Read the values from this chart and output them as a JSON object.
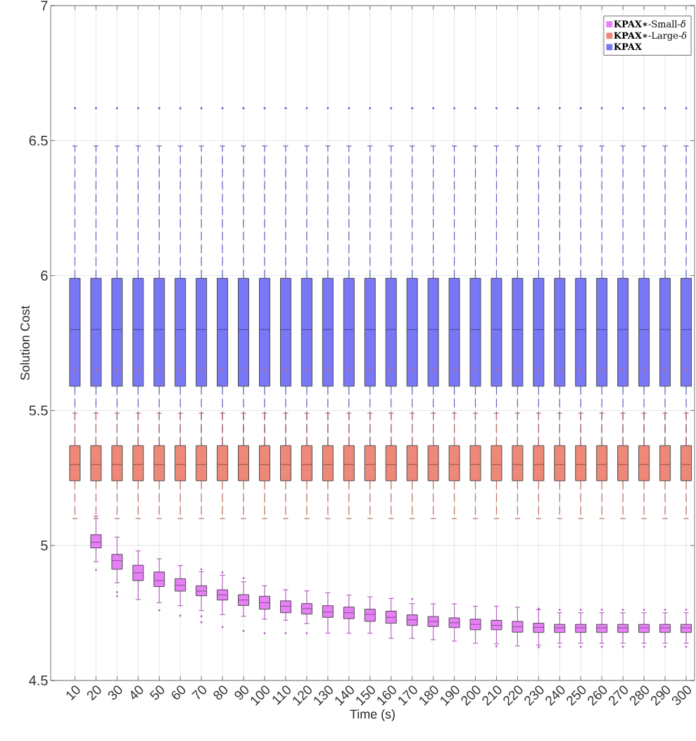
{
  "chart_data": {
    "type": "box",
    "xlabel": "Time (s)",
    "ylabel": "Solution Cost",
    "categories": [
      "10",
      "20",
      "30",
      "40",
      "50",
      "60",
      "70",
      "80",
      "90",
      "100",
      "110",
      "120",
      "130",
      "140",
      "150",
      "160",
      "170",
      "180",
      "190",
      "200",
      "210",
      "220",
      "230",
      "240",
      "250",
      "260",
      "270",
      "280",
      "290",
      "300"
    ],
    "ylim": [
      4.5,
      7
    ],
    "yticks": [
      4.5,
      5,
      5.5,
      6,
      6.5,
      7
    ],
    "grid": true,
    "legend": "top right",
    "series": [
      {
        "name": "**KPAX∗**-Small-*δ*",
        "color": "#e680f5",
        "line_style": "solid",
        "boxes": [
          null,
          {
            "low": 4.94,
            "q1": 4.991,
            "median": 5.012,
            "q3": 5.04,
            "high": 5.109,
            "outliers": [
              4.91
            ]
          },
          {
            "low": 4.862,
            "q1": 4.912,
            "median": 4.944,
            "q3": 4.967,
            "high": 5.031,
            "outliers": [
              4.827,
              4.812
            ]
          },
          {
            "low": 4.8,
            "q1": 4.87,
            "median": 4.899,
            "q3": 4.927,
            "high": 4.98
          },
          {
            "low": 4.788,
            "q1": 4.848,
            "median": 4.87,
            "q3": 4.902,
            "high": 4.951,
            "outliers": [
              4.76
            ]
          },
          {
            "low": 4.777,
            "q1": 4.831,
            "median": 4.853,
            "q3": 4.877,
            "high": 4.926,
            "outliers": [
              4.74
            ]
          },
          {
            "low": 4.759,
            "q1": 4.814,
            "median": 4.831,
            "q3": 4.851,
            "high": 4.903,
            "outliers": [
              4.912,
              4.738,
              4.716
            ]
          },
          {
            "low": 4.744,
            "q1": 4.798,
            "median": 4.817,
            "q3": 4.836,
            "high": 4.89,
            "outliers": [
              4.9,
              4.698
            ]
          },
          {
            "low": 4.738,
            "q1": 4.778,
            "median": 4.798,
            "q3": 4.818,
            "high": 4.866,
            "outliers": [
              4.879,
              4.684
            ]
          },
          {
            "low": 4.727,
            "q1": 4.764,
            "median": 4.788,
            "q3": 4.812,
            "high": 4.851,
            "outliers": [
              4.675
            ]
          },
          {
            "low": 4.723,
            "q1": 4.751,
            "median": 4.775,
            "q3": 4.795,
            "high": 4.836,
            "outliers": [
              4.675
            ]
          },
          {
            "low": 4.711,
            "q1": 4.746,
            "median": 4.766,
            "q3": 4.785,
            "high": 4.832,
            "outliers": [
              4.675
            ]
          },
          {
            "low": 4.675,
            "q1": 4.734,
            "median": 4.753,
            "q3": 4.777,
            "high": 4.825
          },
          {
            "low": 4.675,
            "q1": 4.729,
            "median": 4.751,
            "q3": 4.772,
            "high": 4.816
          },
          {
            "low": 4.675,
            "q1": 4.719,
            "median": 4.745,
            "q3": 4.764,
            "high": 4.81
          },
          {
            "low": 4.656,
            "q1": 4.712,
            "median": 4.734,
            "q3": 4.757,
            "high": 4.804
          },
          {
            "low": 4.656,
            "q1": 4.704,
            "median": 4.725,
            "q3": 4.743,
            "high": 4.785,
            "outliers": [
              4.802
            ]
          },
          {
            "low": 4.651,
            "q1": 4.7,
            "median": 4.719,
            "q3": 4.737,
            "high": 4.784
          },
          {
            "low": 4.646,
            "q1": 4.696,
            "median": 4.714,
            "q3": 4.732,
            "high": 4.784
          },
          {
            "low": 4.638,
            "q1": 4.688,
            "median": 4.708,
            "q3": 4.727,
            "high": 4.775
          },
          {
            "low": 4.636,
            "q1": 4.688,
            "median": 4.704,
            "q3": 4.723,
            "high": 4.775,
            "outliers": [
              4.627
            ]
          },
          {
            "low": 4.628,
            "q1": 4.679,
            "median": 4.699,
            "q3": 4.719,
            "high": 4.771
          },
          {
            "low": 4.631,
            "q1": 4.678,
            "median": 4.697,
            "q3": 4.712,
            "high": 4.762,
            "outliers": [
              4.766,
              4.623
            ]
          },
          {
            "low": 4.638,
            "q1": 4.678,
            "median": 4.695,
            "q3": 4.708,
            "high": 4.751,
            "outliers": [
              4.762,
              4.625
            ]
          },
          {
            "low": 4.638,
            "q1": 4.678,
            "median": 4.695,
            "q3": 4.708,
            "high": 4.751,
            "outliers": [
              4.762,
              4.625
            ]
          },
          {
            "low": 4.638,
            "q1": 4.678,
            "median": 4.695,
            "q3": 4.708,
            "high": 4.751,
            "outliers": [
              4.762,
              4.625
            ]
          },
          {
            "low": 4.638,
            "q1": 4.678,
            "median": 4.695,
            "q3": 4.708,
            "high": 4.751,
            "outliers": [
              4.762,
              4.625
            ]
          },
          {
            "low": 4.638,
            "q1": 4.678,
            "median": 4.695,
            "q3": 4.708,
            "high": 4.751,
            "outliers": [
              4.762,
              4.625
            ]
          },
          {
            "low": 4.638,
            "q1": 4.678,
            "median": 4.695,
            "q3": 4.708,
            "high": 4.751,
            "outliers": [
              4.762,
              4.625
            ]
          },
          {
            "low": 4.638,
            "q1": 4.678,
            "median": 4.695,
            "q3": 4.708,
            "high": 4.751,
            "outliers": [
              4.762,
              4.625
            ]
          }
        ]
      },
      {
        "name": "**KPAX∗**-Large-*δ*",
        "color": "#ee8878",
        "line_style": "dashed",
        "boxes": [
          {
            "low": 5.1,
            "q1": 5.24,
            "median": 5.3,
            "q3": 5.37,
            "high": 5.49,
            "outliers": [
              5.65
            ]
          },
          {
            "low": 5.1,
            "q1": 5.24,
            "median": 5.3,
            "q3": 5.37,
            "high": 5.49,
            "outliers": [
              5.65
            ]
          },
          {
            "low": 5.1,
            "q1": 5.24,
            "median": 5.3,
            "q3": 5.37,
            "high": 5.49,
            "outliers": [
              5.65
            ]
          },
          {
            "low": 5.1,
            "q1": 5.24,
            "median": 5.3,
            "q3": 5.37,
            "high": 5.49,
            "outliers": [
              5.65
            ]
          },
          {
            "low": 5.1,
            "q1": 5.24,
            "median": 5.3,
            "q3": 5.37,
            "high": 5.49,
            "outliers": [
              5.65
            ]
          },
          {
            "low": 5.1,
            "q1": 5.24,
            "median": 5.3,
            "q3": 5.37,
            "high": 5.49,
            "outliers": [
              5.65
            ]
          },
          {
            "low": 5.1,
            "q1": 5.24,
            "median": 5.3,
            "q3": 5.37,
            "high": 5.49,
            "outliers": [
              5.65
            ]
          },
          {
            "low": 5.1,
            "q1": 5.24,
            "median": 5.3,
            "q3": 5.37,
            "high": 5.49,
            "outliers": [
              5.65
            ]
          },
          {
            "low": 5.1,
            "q1": 5.24,
            "median": 5.3,
            "q3": 5.37,
            "high": 5.49,
            "outliers": [
              5.65
            ]
          },
          {
            "low": 5.1,
            "q1": 5.24,
            "median": 5.3,
            "q3": 5.37,
            "high": 5.49,
            "outliers": [
              5.65
            ]
          },
          {
            "low": 5.1,
            "q1": 5.24,
            "median": 5.3,
            "q3": 5.37,
            "high": 5.49,
            "outliers": [
              5.65
            ]
          },
          {
            "low": 5.1,
            "q1": 5.24,
            "median": 5.3,
            "q3": 5.37,
            "high": 5.49,
            "outliers": [
              5.65
            ]
          },
          {
            "low": 5.1,
            "q1": 5.24,
            "median": 5.3,
            "q3": 5.37,
            "high": 5.49,
            "outliers": [
              5.65
            ]
          },
          {
            "low": 5.1,
            "q1": 5.24,
            "median": 5.3,
            "q3": 5.37,
            "high": 5.49,
            "outliers": [
              5.65
            ]
          },
          {
            "low": 5.1,
            "q1": 5.24,
            "median": 5.3,
            "q3": 5.37,
            "high": 5.49,
            "outliers": [
              5.65
            ]
          },
          {
            "low": 5.1,
            "q1": 5.24,
            "median": 5.3,
            "q3": 5.37,
            "high": 5.49,
            "outliers": [
              5.65
            ]
          },
          {
            "low": 5.1,
            "q1": 5.24,
            "median": 5.3,
            "q3": 5.37,
            "high": 5.49,
            "outliers": [
              5.65
            ]
          },
          {
            "low": 5.1,
            "q1": 5.24,
            "median": 5.3,
            "q3": 5.37,
            "high": 5.49,
            "outliers": [
              5.65
            ]
          },
          {
            "low": 5.1,
            "q1": 5.24,
            "median": 5.3,
            "q3": 5.37,
            "high": 5.49,
            "outliers": [
              5.65
            ]
          },
          {
            "low": 5.1,
            "q1": 5.24,
            "median": 5.3,
            "q3": 5.37,
            "high": 5.49,
            "outliers": [
              5.65
            ]
          },
          {
            "low": 5.1,
            "q1": 5.24,
            "median": 5.3,
            "q3": 5.37,
            "high": 5.49,
            "outliers": [
              5.65
            ]
          },
          {
            "low": 5.1,
            "q1": 5.24,
            "median": 5.3,
            "q3": 5.37,
            "high": 5.49,
            "outliers": [
              5.65
            ]
          },
          {
            "low": 5.1,
            "q1": 5.24,
            "median": 5.3,
            "q3": 5.37,
            "high": 5.49,
            "outliers": [
              5.65
            ]
          },
          {
            "low": 5.1,
            "q1": 5.24,
            "median": 5.3,
            "q3": 5.37,
            "high": 5.49,
            "outliers": [
              5.65
            ]
          },
          {
            "low": 5.1,
            "q1": 5.24,
            "median": 5.3,
            "q3": 5.37,
            "high": 5.49,
            "outliers": [
              5.65
            ]
          },
          {
            "low": 5.1,
            "q1": 5.24,
            "median": 5.3,
            "q3": 5.37,
            "high": 5.49,
            "outliers": [
              5.65
            ]
          },
          {
            "low": 5.1,
            "q1": 5.24,
            "median": 5.3,
            "q3": 5.37,
            "high": 5.49,
            "outliers": [
              5.65
            ]
          },
          {
            "low": 5.1,
            "q1": 5.24,
            "median": 5.3,
            "q3": 5.37,
            "high": 5.49,
            "outliers": [
              5.65
            ]
          },
          {
            "low": 5.1,
            "q1": 5.24,
            "median": 5.3,
            "q3": 5.37,
            "high": 5.49,
            "outliers": [
              5.65
            ]
          },
          {
            "low": 5.1,
            "q1": 5.24,
            "median": 5.3,
            "q3": 5.37,
            "high": 5.49,
            "outliers": [
              5.65
            ]
          }
        ]
      },
      {
        "name": "**KPAX**",
        "color": "#7878f6",
        "line_style": "dashed",
        "boxes": [
          {
            "low": 5.32,
            "q1": 5.59,
            "median": 5.8,
            "q3": 5.99,
            "high": 6.48,
            "outliers": [
              6.62
            ]
          },
          {
            "low": 5.32,
            "q1": 5.59,
            "median": 5.8,
            "q3": 5.99,
            "high": 6.48,
            "outliers": [
              6.62
            ]
          },
          {
            "low": 5.32,
            "q1": 5.59,
            "median": 5.8,
            "q3": 5.99,
            "high": 6.48,
            "outliers": [
              6.62
            ]
          },
          {
            "low": 5.32,
            "q1": 5.59,
            "median": 5.8,
            "q3": 5.99,
            "high": 6.48,
            "outliers": [
              6.62
            ]
          },
          {
            "low": 5.32,
            "q1": 5.59,
            "median": 5.8,
            "q3": 5.99,
            "high": 6.48,
            "outliers": [
              6.62
            ]
          },
          {
            "low": 5.32,
            "q1": 5.59,
            "median": 5.8,
            "q3": 5.99,
            "high": 6.48,
            "outliers": [
              6.62
            ]
          },
          {
            "low": 5.32,
            "q1": 5.59,
            "median": 5.8,
            "q3": 5.99,
            "high": 6.48,
            "outliers": [
              6.62
            ]
          },
          {
            "low": 5.32,
            "q1": 5.59,
            "median": 5.8,
            "q3": 5.99,
            "high": 6.48,
            "outliers": [
              6.62
            ]
          },
          {
            "low": 5.32,
            "q1": 5.59,
            "median": 5.8,
            "q3": 5.99,
            "high": 6.48,
            "outliers": [
              6.62
            ]
          },
          {
            "low": 5.32,
            "q1": 5.59,
            "median": 5.8,
            "q3": 5.99,
            "high": 6.48,
            "outliers": [
              6.62
            ]
          },
          {
            "low": 5.32,
            "q1": 5.59,
            "median": 5.8,
            "q3": 5.99,
            "high": 6.48,
            "outliers": [
              6.62
            ]
          },
          {
            "low": 5.32,
            "q1": 5.59,
            "median": 5.8,
            "q3": 5.99,
            "high": 6.48,
            "outliers": [
              6.62
            ]
          },
          {
            "low": 5.32,
            "q1": 5.59,
            "median": 5.8,
            "q3": 5.99,
            "high": 6.48,
            "outliers": [
              6.62
            ]
          },
          {
            "low": 5.32,
            "q1": 5.59,
            "median": 5.8,
            "q3": 5.99,
            "high": 6.48,
            "outliers": [
              6.62
            ]
          },
          {
            "low": 5.32,
            "q1": 5.59,
            "median": 5.8,
            "q3": 5.99,
            "high": 6.48,
            "outliers": [
              6.62
            ]
          },
          {
            "low": 5.32,
            "q1": 5.59,
            "median": 5.8,
            "q3": 5.99,
            "high": 6.48,
            "outliers": [
              6.62
            ]
          },
          {
            "low": 5.32,
            "q1": 5.59,
            "median": 5.8,
            "q3": 5.99,
            "high": 6.48,
            "outliers": [
              6.62
            ]
          },
          {
            "low": 5.32,
            "q1": 5.59,
            "median": 5.8,
            "q3": 5.99,
            "high": 6.48,
            "outliers": [
              6.62
            ]
          },
          {
            "low": 5.32,
            "q1": 5.59,
            "median": 5.8,
            "q3": 5.99,
            "high": 6.48,
            "outliers": [
              6.62
            ]
          },
          {
            "low": 5.32,
            "q1": 5.59,
            "median": 5.8,
            "q3": 5.99,
            "high": 6.48,
            "outliers": [
              6.62
            ]
          },
          {
            "low": 5.32,
            "q1": 5.59,
            "median": 5.8,
            "q3": 5.99,
            "high": 6.48,
            "outliers": [
              6.62
            ]
          },
          {
            "low": 5.32,
            "q1": 5.59,
            "median": 5.8,
            "q3": 5.99,
            "high": 6.48,
            "outliers": [
              6.62
            ]
          },
          {
            "low": 5.32,
            "q1": 5.59,
            "median": 5.8,
            "q3": 5.99,
            "high": 6.48,
            "outliers": [
              6.62
            ]
          },
          {
            "low": 5.32,
            "q1": 5.59,
            "median": 5.8,
            "q3": 5.99,
            "high": 6.48,
            "outliers": [
              6.62
            ]
          },
          {
            "low": 5.32,
            "q1": 5.59,
            "median": 5.8,
            "q3": 5.99,
            "high": 6.48,
            "outliers": [
              6.62
            ]
          },
          {
            "low": 5.32,
            "q1": 5.59,
            "median": 5.8,
            "q3": 5.99,
            "high": 6.48,
            "outliers": [
              6.62
            ]
          },
          {
            "low": 5.32,
            "q1": 5.59,
            "median": 5.8,
            "q3": 5.99,
            "high": 6.48,
            "outliers": [
              6.62
            ]
          },
          {
            "low": 5.32,
            "q1": 5.59,
            "median": 5.8,
            "q3": 5.99,
            "high": 6.48,
            "outliers": [
              6.62
            ]
          },
          {
            "low": 5.32,
            "q1": 5.59,
            "median": 5.8,
            "q3": 5.99,
            "high": 6.48,
            "outliers": [
              6.62
            ]
          },
          {
            "low": 5.32,
            "q1": 5.59,
            "median": 5.8,
            "q3": 5.99,
            "high": 6.48,
            "outliers": [
              6.62
            ]
          }
        ]
      }
    ]
  }
}
